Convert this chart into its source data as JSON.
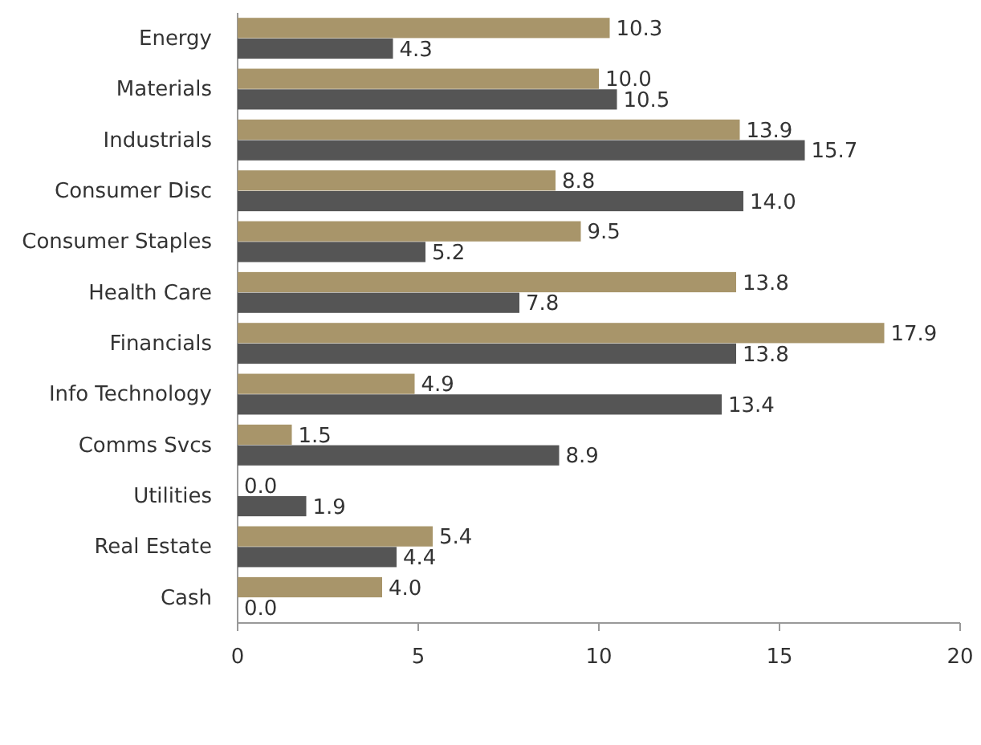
{
  "chart_data": {
    "type": "bar",
    "orientation": "horizontal",
    "categories": [
      "Energy",
      "Materials",
      "Industrials",
      "Consumer Disc",
      "Consumer Staples",
      "Health Care",
      "Financials",
      "Info Technology",
      "Comms Svcs",
      "Utilities",
      "Real Estate",
      "Cash"
    ],
    "series": [
      {
        "color": "#a8956a",
        "values": [
          10.3,
          10,
          13.9,
          8.8,
          9.5,
          13.8,
          17.9,
          4.9,
          1.5,
          0,
          5.4,
          4
        ],
        "value_labels": [
          "10.3",
          "10.0",
          "13.9",
          "8.8",
          "9.5",
          "13.8",
          "17.9",
          "4.9",
          "1.5",
          "0.0",
          "5.4",
          "4.0"
        ]
      },
      {
        "color": "#555555",
        "values": [
          4.3,
          10.5,
          15.7,
          14,
          5.2,
          7.8,
          13.8,
          13.4,
          8.9,
          1.9,
          4.4,
          0
        ],
        "value_labels": [
          "4.3",
          "10.5",
          "15.7",
          "14.0",
          "5.2",
          "7.8",
          "13.8",
          "13.4",
          "8.9",
          "1.9",
          "4.4",
          "0.0"
        ]
      }
    ],
    "xlim": [
      0,
      20
    ],
    "xticks": [
      0,
      5,
      10,
      15,
      20
    ],
    "grid": false
  }
}
